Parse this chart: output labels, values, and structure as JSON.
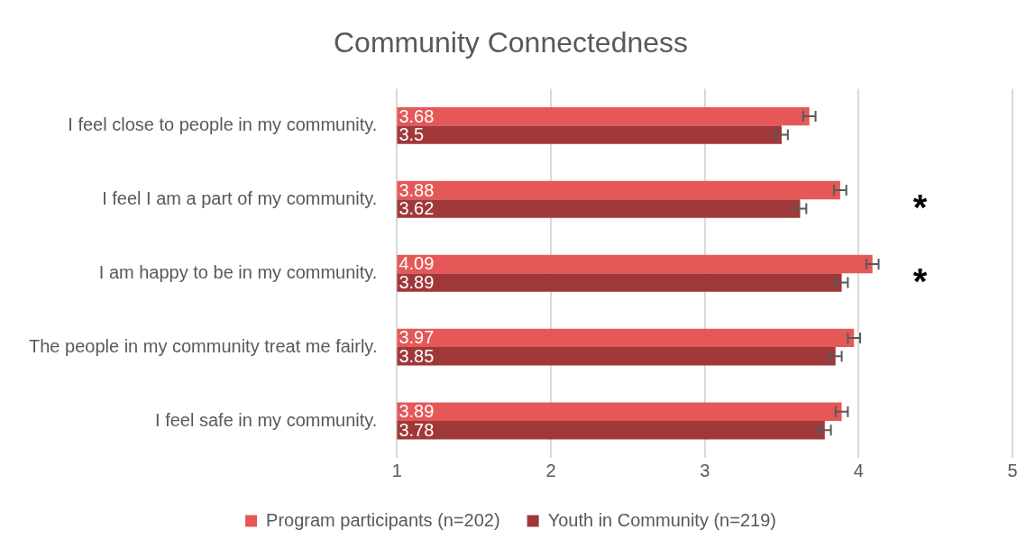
{
  "chart_data": {
    "type": "bar",
    "orientation": "horizontal",
    "title": "Community Connectedness",
    "categories": [
      "I feel close to people in my community.",
      "I feel I am a part of my community.",
      "I am happy to be in my community.",
      "The people in my community treat me fairly.",
      "I feel safe in my community."
    ],
    "series": [
      {
        "name": "Program participants (n=202)",
        "color": "#e65858",
        "values": [
          3.68,
          3.88,
          4.09,
          3.97,
          3.89
        ],
        "errors": [
          0.04,
          0.04,
          0.04,
          0.04,
          0.04
        ]
      },
      {
        "name": "Youth in Community (n=219)",
        "color": "#a0383a",
        "values": [
          3.5,
          3.62,
          3.89,
          3.85,
          3.78
        ],
        "errors": [
          0.04,
          0.04,
          0.04,
          0.04,
          0.04
        ]
      }
    ],
    "xlim": [
      1,
      5
    ],
    "xticks": [
      1,
      2,
      3,
      4,
      5
    ],
    "grid": "x",
    "legend": "bottom",
    "data_labels": true,
    "annotations": [
      "*",
      "*"
    ]
  }
}
